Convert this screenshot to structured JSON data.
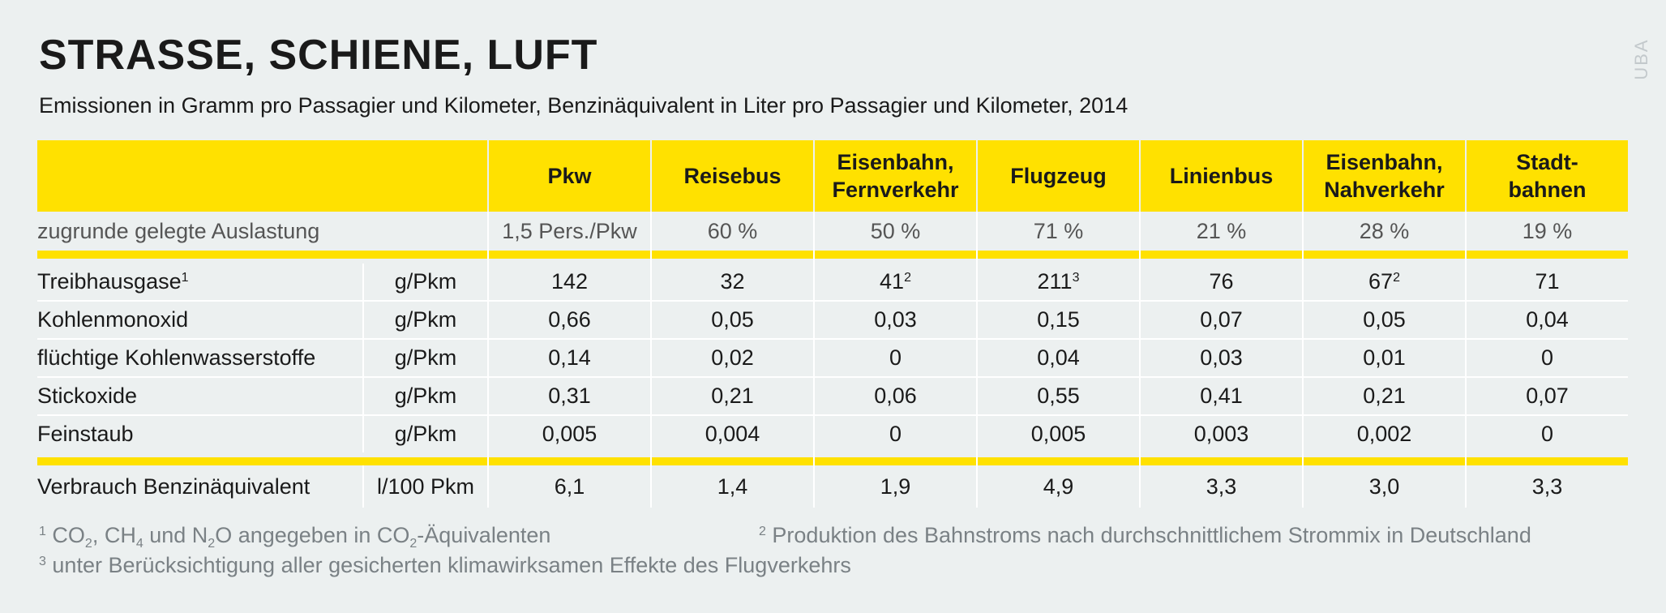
{
  "title": "STRASSE, SCHIENE, LUFT",
  "subtitle": "Emissionen in Gramm pro Passagier und Kilometer, Benzinäquivalent in Liter pro Passagier und Kilometer, 2014",
  "source": "UBA",
  "chart_data": {
    "type": "table",
    "columns": [
      {
        "l1": "Pkw",
        "l2": ""
      },
      {
        "l1": "Reisebus",
        "l2": ""
      },
      {
        "l1": "Eisenbahn,",
        "l2": "Fernverkehr"
      },
      {
        "l1": "Flugzeug",
        "l2": ""
      },
      {
        "l1": "Linienbus",
        "l2": ""
      },
      {
        "l1": "Eisenbahn,",
        "l2": "Nahverkehr"
      },
      {
        "l1": "Stadt-",
        "l2": "bahnen"
      }
    ],
    "load_row": {
      "label": "zugrunde gelegte Auslastung",
      "values": [
        "1,5 Pers./Pkw",
        "60 %",
        "50 %",
        "71 %",
        "21 %",
        "28 %",
        "19 %"
      ]
    },
    "emission_rows": [
      {
        "label": "Treibhausgase",
        "sup": "1",
        "unit": "g/Pkm",
        "values": [
          {
            "v": "142",
            "s": ""
          },
          {
            "v": "32",
            "s": ""
          },
          {
            "v": "41",
            "s": "2"
          },
          {
            "v": "211",
            "s": "3"
          },
          {
            "v": "76",
            "s": ""
          },
          {
            "v": "67",
            "s": "2"
          },
          {
            "v": "71",
            "s": ""
          }
        ]
      },
      {
        "label": "Kohlenmonoxid",
        "sup": "",
        "unit": "g/Pkm",
        "values": [
          {
            "v": "0,66",
            "s": ""
          },
          {
            "v": "0,05",
            "s": ""
          },
          {
            "v": "0,03",
            "s": ""
          },
          {
            "v": "0,15",
            "s": ""
          },
          {
            "v": "0,07",
            "s": ""
          },
          {
            "v": "0,05",
            "s": ""
          },
          {
            "v": "0,04",
            "s": ""
          }
        ]
      },
      {
        "label": "flüchtige Kohlenwasserstoffe",
        "sup": "",
        "unit": "g/Pkm",
        "values": [
          {
            "v": "0,14",
            "s": ""
          },
          {
            "v": "0,02",
            "s": ""
          },
          {
            "v": "0",
            "s": ""
          },
          {
            "v": "0,04",
            "s": ""
          },
          {
            "v": "0,03",
            "s": ""
          },
          {
            "v": "0,01",
            "s": ""
          },
          {
            "v": "0",
            "s": ""
          }
        ]
      },
      {
        "label": "Stickoxide",
        "sup": "",
        "unit": "g/Pkm",
        "values": [
          {
            "v": "0,31",
            "s": ""
          },
          {
            "v": "0,21",
            "s": ""
          },
          {
            "v": "0,06",
            "s": ""
          },
          {
            "v": "0,55",
            "s": ""
          },
          {
            "v": "0,41",
            "s": ""
          },
          {
            "v": "0,21",
            "s": ""
          },
          {
            "v": "0,07",
            "s": ""
          }
        ]
      },
      {
        "label": "Feinstaub",
        "sup": "",
        "unit": "g/Pkm",
        "values": [
          {
            "v": "0,005",
            "s": ""
          },
          {
            "v": "0,004",
            "s": ""
          },
          {
            "v": "0",
            "s": ""
          },
          {
            "v": "0,005",
            "s": ""
          },
          {
            "v": "0,003",
            "s": ""
          },
          {
            "v": "0,002",
            "s": ""
          },
          {
            "v": "0",
            "s": ""
          }
        ]
      }
    ],
    "consumption_row": {
      "label": "Verbrauch Benzinäquivalent",
      "unit": "l/100 Pkm",
      "values": [
        "6,1",
        "1,4",
        "1,9",
        "4,9",
        "3,3",
        "3,0",
        "3,3"
      ]
    }
  },
  "footnotes": {
    "fn1": {
      "mark": "1",
      "p1": " CO",
      "s1": "2",
      "p2": ", CH",
      "s2": "4",
      "p3": " und N",
      "s3": "2",
      "p4": "O angegeben in CO",
      "s4": "2",
      "p5": "-Äquivalenten"
    },
    "fn2": {
      "mark": "2",
      "text": " Produktion des Bahnstroms nach durchschnittlichem Strommix in Deutschland"
    },
    "fn3": {
      "mark": "3",
      "text": " unter Berücksichtigung aller gesicherten klimawirksamen Effekte des Flugverkehrs"
    }
  },
  "colors": {
    "accent": "#ffe100",
    "background": "#ecf0f0",
    "footnote": "#7a8185"
  }
}
